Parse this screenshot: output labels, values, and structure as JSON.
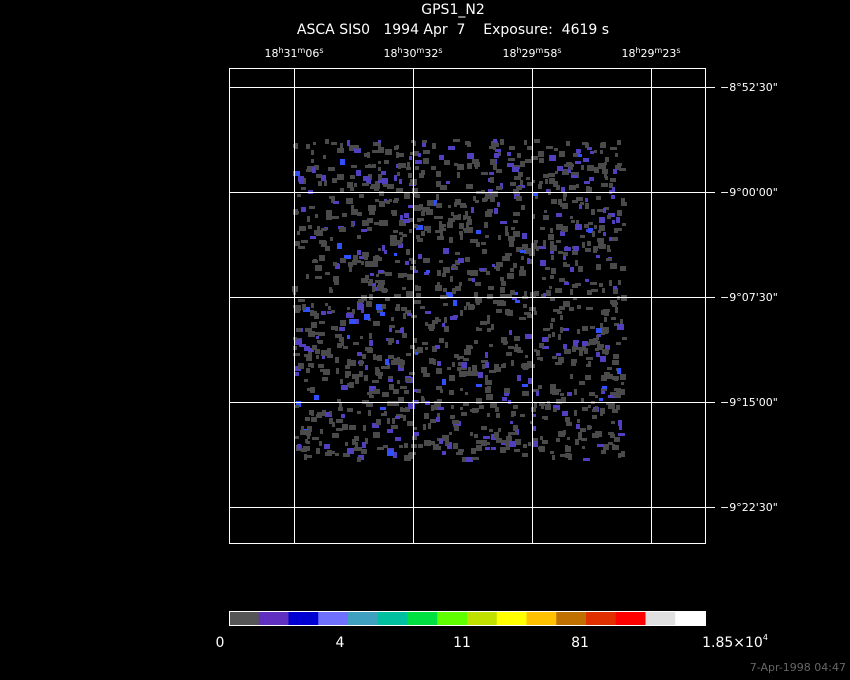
{
  "header": {
    "title": "GPS1_N2",
    "subtitle": "ASCA SIS0   1994 Apr  7    Exposure:  4619 s"
  },
  "ra_labels": [
    [
      "18",
      "h",
      "31",
      "m",
      "06",
      "s"
    ],
    [
      "18",
      "h",
      "30",
      "m",
      "32",
      "s"
    ],
    [
      "18",
      "h",
      "29",
      "m",
      "58",
      "s"
    ],
    [
      "18",
      "h",
      "29",
      "m",
      "23",
      "s"
    ]
  ],
  "dec_labels": [
    "−8°52'30\"",
    "−9°00'00\"",
    "−9°07'30\"",
    "−9°15'00\"",
    "−9°22'30\""
  ],
  "colorbar": {
    "colors": [
      "#555555",
      "#6030c0",
      "#0000d0",
      "#7070ff",
      "#40a0c0",
      "#00c0a0",
      "#00e040",
      "#60ff00",
      "#c0e000",
      "#ffff00",
      "#ffc000",
      "#c07000",
      "#e03000",
      "#ff0000",
      "#e0e0e0",
      "#ffffff"
    ],
    "labels": [
      "0",
      "4",
      "11",
      "81"
    ],
    "max_label": [
      "1.85×10",
      "4"
    ]
  },
  "timestamp": "7-Apr-1998 04:47"
}
